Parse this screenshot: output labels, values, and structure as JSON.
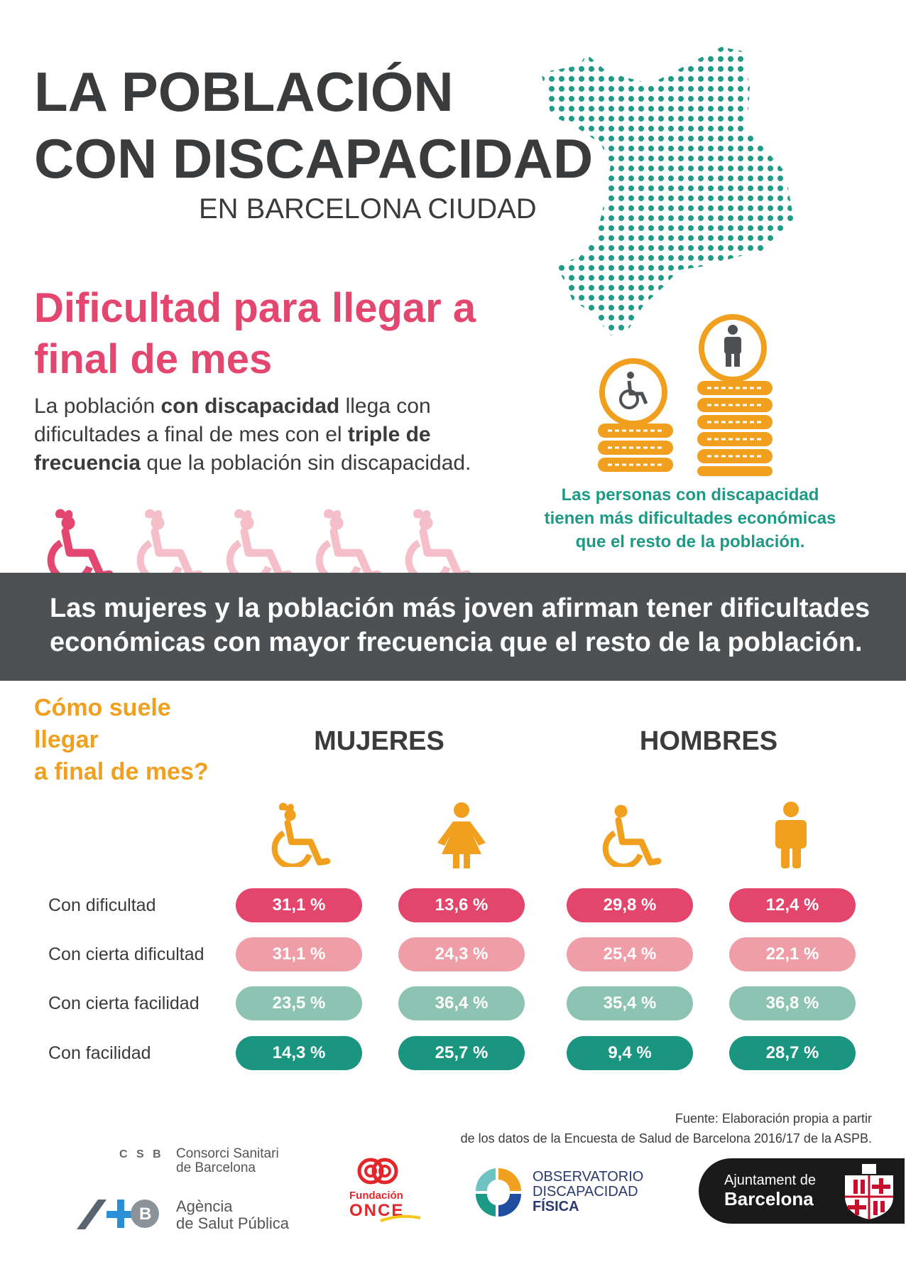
{
  "title": {
    "line1": "LA POBLACIÓN",
    "line2": "CON DISCAPACIDAD",
    "subtitle": "EN BARCELONA CIUDAD"
  },
  "section": {
    "heading_line1": "Dificultad para llegar a",
    "heading_line2": "final de mes",
    "intro": {
      "p1": "La población ",
      "b1": "con discapacidad",
      "p2": " llega con dificultades a final de mes con el ",
      "b2": "triple de frecuencia",
      "p3": " que la población sin discapacidad."
    },
    "caption_line1": "Las personas con discapacidad",
    "caption_line2": "tienen más dificultades económicas",
    "caption_line3": "que el resto de la población."
  },
  "banner": {
    "line1": "Las mujeres y la población más joven afirman tener dificultades",
    "line2": "económicas con mayor frecuencia que el resto de la población."
  },
  "table": {
    "question_line1": "Cómo suele",
    "question_line2": "llegar",
    "question_line3": "a final de mes?",
    "groups": [
      "MUJERES",
      "HOMBRES"
    ],
    "rows": [
      {
        "label": "Con dificultad",
        "values": [
          "31,1 %",
          "13,6 %",
          "29,8 %",
          "12,4 %"
        ]
      },
      {
        "label": "Con cierta dificultad",
        "values": [
          "31,1 %",
          "24,3 %",
          "25,4 %",
          "22,1 %"
        ]
      },
      {
        "label": "Con cierta facilidad",
        "values": [
          "23,5 %",
          "36,4 %",
          "35,4 %",
          "36,8 %"
        ]
      },
      {
        "label": "Con facilidad",
        "values": [
          "14,3 %",
          "25,7 %",
          "9,4 %",
          "28,7 %"
        ]
      }
    ]
  },
  "source": {
    "line1": "Fuente: Elaboración propia a partir",
    "line2": "de los datos de la Encuesta de Salud de Barcelona 2016/17 de la ASPB."
  },
  "logos": {
    "csb_mark": "C S B",
    "csb_line1": "Consorci Sanitari",
    "csb_line2": "de Barcelona",
    "aspb_line1": "Agència",
    "aspb_line2": "de Salut Pública",
    "once_line1": "Fundación",
    "once_line2": "ONCE",
    "odf_line1": "OBSERVATORIO",
    "odf_line2": "DISCAPACIDAD",
    "odf_line3": "FÍSICA",
    "ajb_line1": "Ajuntament de",
    "ajb_line2": "Barcelona"
  },
  "colors": {
    "pink": "#e3466e",
    "teal": "#1d9a86",
    "orange": "#f0a01e",
    "dark": "#4d5154"
  },
  "icons": [
    "barcelona-map-icon",
    "coin-stack-icon",
    "wheelchair-icon",
    "person-icon",
    "woman-icon",
    "man-icon"
  ]
}
